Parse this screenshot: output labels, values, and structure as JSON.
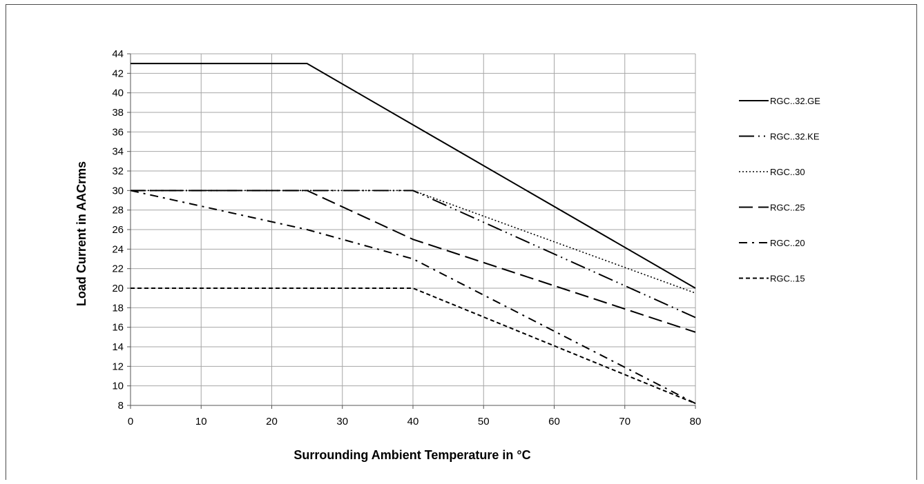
{
  "chart_data": {
    "type": "line",
    "title": "",
    "xlabel": "Surrounding Ambient Temperature in °C",
    "ylabel": "Load Current in AACrms",
    "xlim": [
      0,
      80
    ],
    "ylim": [
      8,
      44
    ],
    "xticks": [
      0,
      10,
      20,
      30,
      40,
      50,
      60,
      70,
      80
    ],
    "yticks": [
      8,
      10,
      12,
      14,
      16,
      18,
      20,
      22,
      24,
      26,
      28,
      30,
      32,
      34,
      36,
      38,
      40,
      42,
      44
    ],
    "grid": true,
    "legend_position": "right",
    "series": [
      {
        "name": "RGC..32.GE",
        "dash": "solid",
        "x": [
          0,
          25,
          80
        ],
        "y": [
          43,
          43,
          20
        ]
      },
      {
        "name": "RGC..32.KE",
        "dash": "long-dash-dot-dot",
        "x": [
          0,
          40,
          80
        ],
        "y": [
          30,
          30,
          17
        ]
      },
      {
        "name": "RGC..30",
        "dash": "dotted",
        "x": [
          0,
          40,
          80
        ],
        "y": [
          30,
          30,
          19.5
        ]
      },
      {
        "name": "RGC..25",
        "dash": "long-dash",
        "x": [
          0,
          25,
          40,
          80
        ],
        "y": [
          30,
          30,
          25,
          15.5
        ]
      },
      {
        "name": "RGC..20",
        "dash": "dash-dot",
        "x": [
          0,
          25,
          40,
          80
        ],
        "y": [
          30,
          26,
          23,
          8.2
        ]
      },
      {
        "name": "RGC..15",
        "dash": "short-dash",
        "x": [
          0,
          40,
          80
        ],
        "y": [
          20,
          20,
          8.2
        ]
      }
    ]
  }
}
